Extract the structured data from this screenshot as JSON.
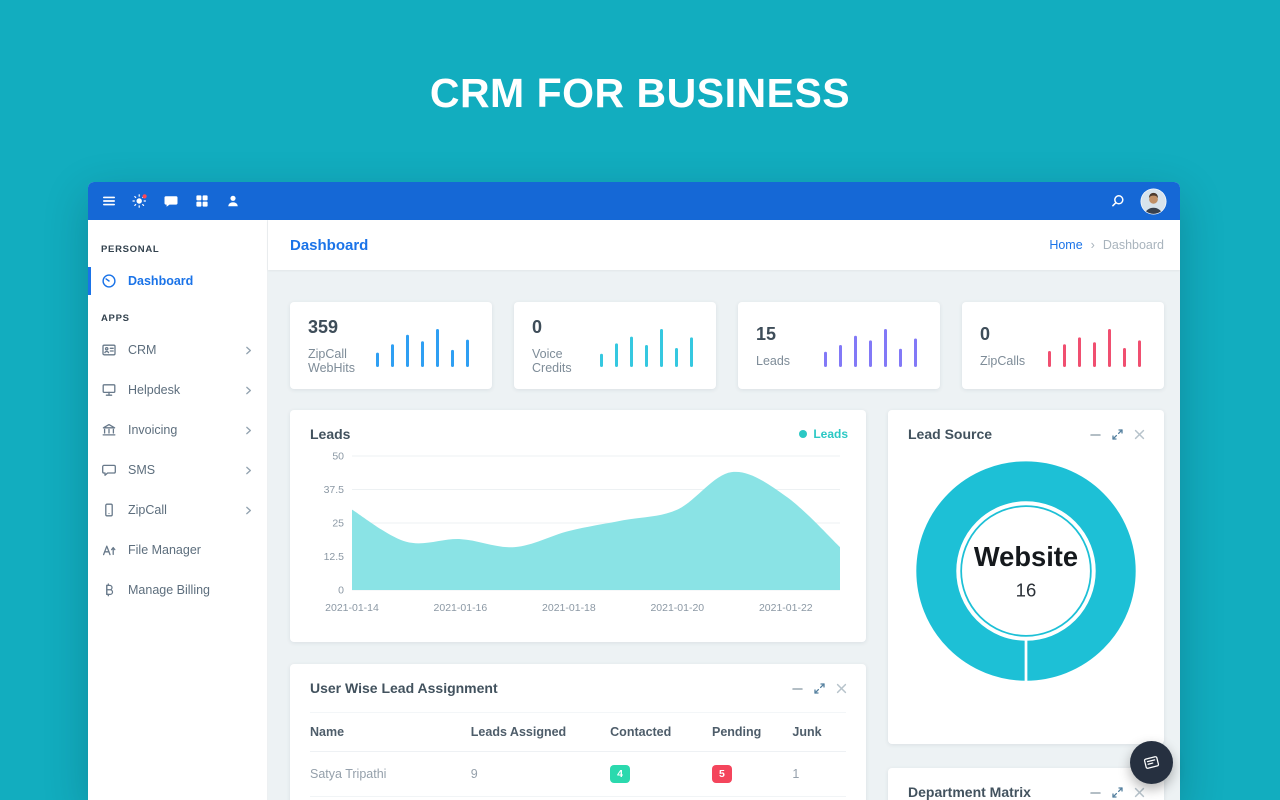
{
  "colors": {
    "page-bg": "#12adbf",
    "navbar": "#1568d6",
    "accent": "#1a73e8",
    "teal": "#1dc0d6",
    "area-fill": "#8ae3e5",
    "legend-teal": "#2bc8c4",
    "badge-green": "#2bd9ae",
    "badge-red": "#f4455c",
    "fab-bg": "#263040"
  },
  "page": {
    "banner_title": "CRM FOR BUSINESS"
  },
  "navbar": {
    "left_icons": [
      "menu-icon",
      "theme-icon",
      "chat-icon",
      "apps-icon",
      "user-icon"
    ],
    "right_icons": [
      "search-icon",
      "avatar"
    ]
  },
  "sidebar": {
    "sections": [
      {
        "label": "PERSONAL",
        "items": [
          {
            "label": "Dashboard",
            "icon": "dashboard-icon",
            "active": true,
            "chevron": false
          }
        ]
      },
      {
        "label": "APPS",
        "items": [
          {
            "label": "CRM",
            "icon": "crm-icon",
            "active": false,
            "chevron": true
          },
          {
            "label": "Helpdesk",
            "icon": "helpdesk-icon",
            "active": false,
            "chevron": true
          },
          {
            "label": "Invoicing",
            "icon": "invoicing-icon",
            "active": false,
            "chevron": true
          },
          {
            "label": "SMS",
            "icon": "sms-icon",
            "active": false,
            "chevron": true
          },
          {
            "label": "ZipCall",
            "icon": "zipcall-icon",
            "active": false,
            "chevron": true
          },
          {
            "label": "File Manager",
            "icon": "file-manager-icon",
            "active": false,
            "chevron": false
          },
          {
            "label": "Manage Billing",
            "icon": "billing-icon",
            "active": false,
            "chevron": false
          }
        ]
      }
    ]
  },
  "header": {
    "title": "Dashboard",
    "breadcrumb": {
      "home": "Home",
      "separator": "›",
      "current": "Dashboard"
    }
  },
  "stats": [
    {
      "value": "359",
      "label": "ZipCall WebHits",
      "color": "#2e9ff3",
      "bars": [
        0.38,
        0.6,
        0.85,
        0.68,
        1,
        0.45,
        0.72
      ]
    },
    {
      "value": "0",
      "label": "Voice Credits",
      "color": "#35c8e0",
      "bars": [
        0.35,
        0.62,
        0.8,
        0.58,
        1,
        0.5,
        0.78
      ]
    },
    {
      "value": "15",
      "label": "Leads",
      "color": "#8279f7",
      "bars": [
        0.4,
        0.58,
        0.82,
        0.7,
        1,
        0.48,
        0.75
      ]
    },
    {
      "value": "0",
      "label": "ZipCalls",
      "color": "#f04f70",
      "bars": [
        0.42,
        0.6,
        0.78,
        0.65,
        1,
        0.5,
        0.7
      ]
    }
  ],
  "panels": {
    "leads": {
      "title": "Leads",
      "legend": "Leads"
    },
    "lead_source": {
      "title": "Lead Source",
      "center_label": "Website",
      "center_value": "16"
    },
    "user_wise": {
      "title": "User Wise Lead Assignment",
      "columns": [
        "Name",
        "Leads Assigned",
        "Contacted",
        "Pending",
        "Junk"
      ],
      "rows": [
        {
          "name": "Satya Tripathi",
          "assigned": "9",
          "contacted": "4",
          "pending": "5",
          "junk": "1"
        }
      ]
    },
    "department_matrix": {
      "title": "Department Matrix"
    }
  },
  "chart_data": [
    {
      "type": "area",
      "title": "Leads",
      "series": [
        {
          "name": "Leads",
          "values": [
            30,
            18,
            19,
            16,
            22,
            26,
            30,
            44,
            35,
            16
          ]
        }
      ],
      "x": [
        "2021-01-14",
        "2021-01-15",
        "2021-01-16",
        "2021-01-17",
        "2021-01-18",
        "2021-01-19",
        "2021-01-20",
        "2021-01-21",
        "2021-01-22",
        "2021-01-23"
      ],
      "x_tick_indices": [
        0,
        2,
        4,
        6,
        8
      ],
      "ylim": [
        0,
        50
      ],
      "yticks": [
        0,
        12.5,
        25,
        37.5,
        50
      ],
      "legend": "top-right",
      "grid": true
    },
    {
      "type": "donut",
      "title": "Lead Source",
      "labels": [
        "Website"
      ],
      "values": [
        16
      ]
    }
  ]
}
